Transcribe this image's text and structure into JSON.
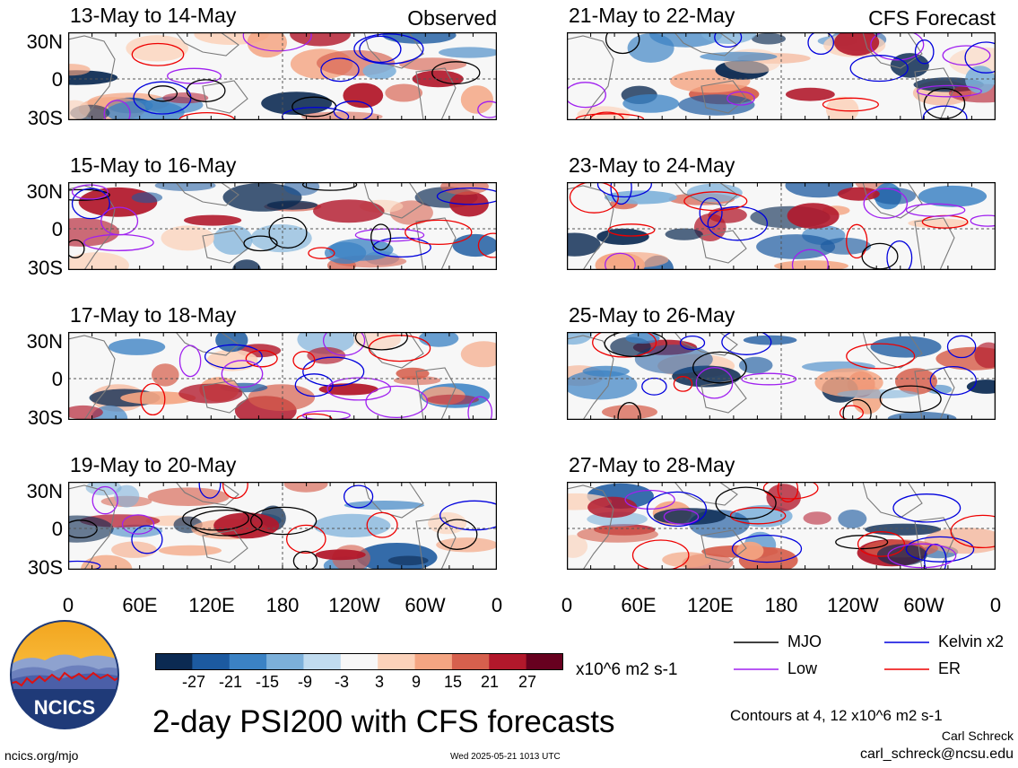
{
  "panels": [
    {
      "title": "13-May to 14-May",
      "tag": "Observed",
      "seed": 1
    },
    {
      "title": "21-May to 22-May",
      "tag": "CFS Forecast",
      "seed": 2
    },
    {
      "title": "15-May to 16-May",
      "tag": "",
      "seed": 3
    },
    {
      "title": "23-May to 24-May",
      "tag": "",
      "seed": 4
    },
    {
      "title": "17-May to 18-May",
      "tag": "",
      "seed": 5
    },
    {
      "title": "25-May to 26-May",
      "tag": "",
      "seed": 6
    },
    {
      "title": "19-May to 20-May",
      "tag": "",
      "seed": 7
    },
    {
      "title": "27-May to 28-May",
      "tag": "",
      "seed": 8
    }
  ],
  "lat_labels": [
    "30N",
    "0",
    "30S"
  ],
  "lon_labels": [
    "0",
    "60E",
    "120E",
    "180",
    "120W",
    "60W",
    "0"
  ],
  "colorbar": {
    "labels": [
      "-27",
      "-21",
      "-15",
      "-9",
      "-3",
      "3",
      "9",
      "15",
      "21",
      "27"
    ],
    "colors": [
      "#0b2a52",
      "#1c5aa0",
      "#3b82c4",
      "#7cb0da",
      "#c0dbef",
      "#f7f7f7",
      "#fbd2ba",
      "#f4a582",
      "#d6604d",
      "#b2182b",
      "#67001f"
    ],
    "units": "x10^6 m2 s-1"
  },
  "legend": [
    {
      "label": "MJO",
      "color": "#000000"
    },
    {
      "label": "Kelvin x2",
      "color": "#0000dd"
    },
    {
      "label": "Low",
      "color": "#a020f0"
    },
    {
      "label": "ER",
      "color": "#ee0000"
    }
  ],
  "logo_text": "NCICS",
  "main_title": "2-day PSI200 with CFS forecasts",
  "contours_note": "Contours at 4, 12 x10^6 m2 s-1",
  "author": "Carl Schreck",
  "email": "carl_schreck@ncsu.edu",
  "site": "ncics.org/mjo",
  "timestamp": "Wed 2025-05-21 1013 UTC"
}
